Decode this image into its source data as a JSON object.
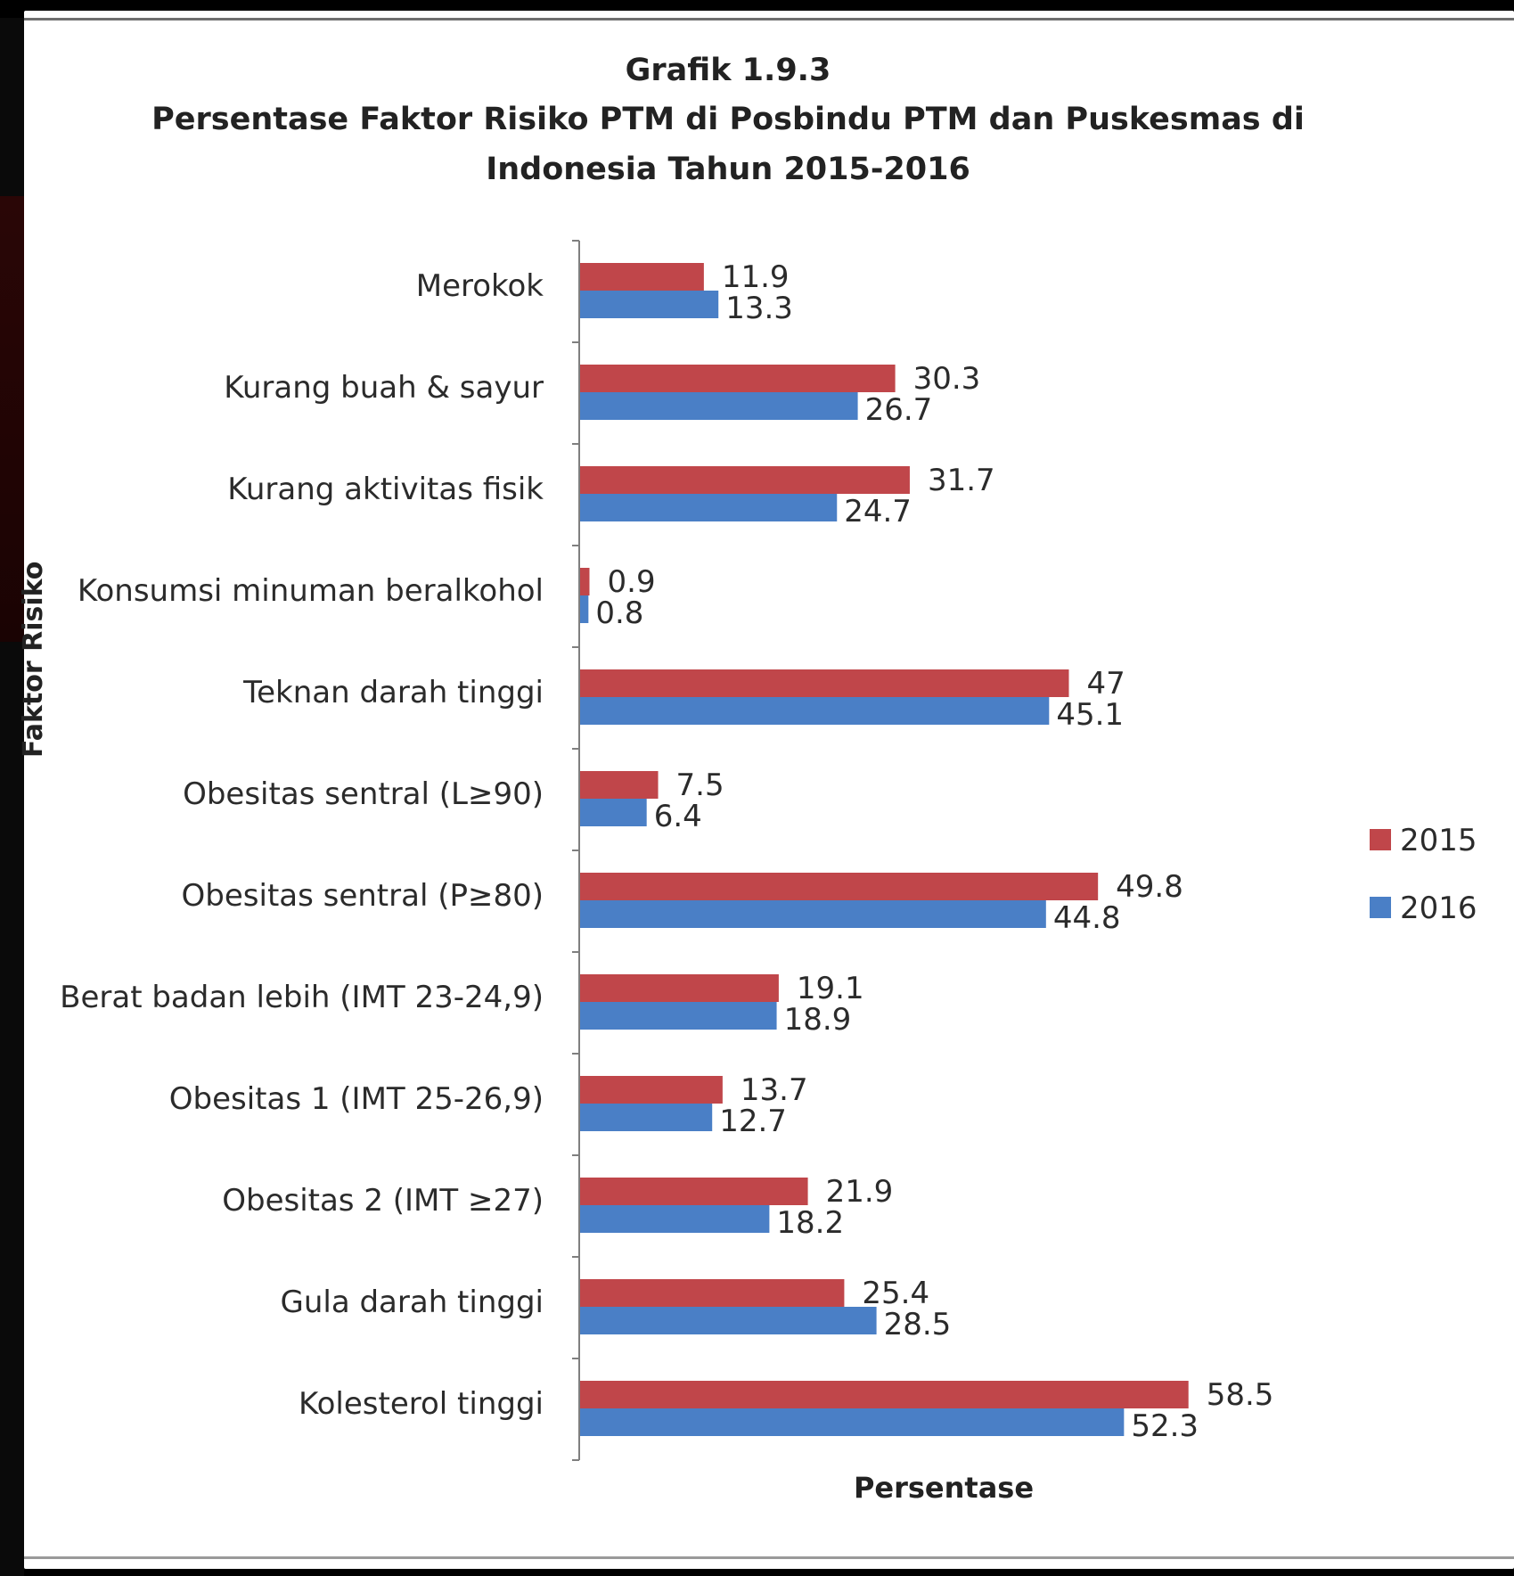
{
  "chart_data": {
    "type": "bar",
    "orientation": "horizontal",
    "title": "Grafik 1.9.3",
    "subtitle": "Persentase Faktor Risiko PTM di Posbindu PTM dan Puskesmas di Indonesia Tahun 2015-2016",
    "subtitle_lines": [
      "Persentase Faktor Risiko PTM di Posbindu PTM dan Puskesmas di",
      "Indonesia Tahun 2015-2016"
    ],
    "xlabel": "Persentase",
    "ylabel": "Faktor Risiko",
    "xlim": [
      0,
      70
    ],
    "grid": false,
    "legend_position": "right",
    "categories": [
      "Merokok",
      "Kurang buah & sayur",
      "Kurang aktivitas fisik",
      "Konsumsi minuman beralkohol",
      "Teknan darah tinggi",
      "Obesitas sentral (L≥90)",
      "Obesitas sentral (P≥80)",
      "Berat badan lebih (IMT 23-24,9)",
      "Obesitas 1 (IMT 25-26,9)",
      "Obesitas 2 (IMT ≥27)",
      "Gula darah tinggi",
      "Kolesterol tinggi"
    ],
    "series": [
      {
        "name": "2015",
        "color": "#c0464a",
        "values": [
          11.9,
          30.3,
          31.7,
          0.9,
          47,
          7.5,
          49.8,
          19.1,
          13.7,
          21.9,
          25.4,
          58.5
        ],
        "labels": [
          "11.9",
          "30.3",
          "31.7",
          "0.9",
          "47",
          "7.5",
          "49.8",
          "19.1",
          "13.7",
          "21.9",
          "25.4",
          "58.5"
        ]
      },
      {
        "name": "2016",
        "color": "#4a7fc6",
        "values": [
          13.3,
          26.7,
          24.7,
          0.8,
          45.1,
          6.4,
          44.8,
          18.9,
          12.7,
          18.2,
          28.5,
          52.3
        ],
        "labels": [
          "13.3",
          "26.7",
          "24.7",
          "0.8",
          "45.1",
          "6.4",
          "44.8",
          "18.9",
          "12.7",
          "18.2",
          "28.5",
          "52.3"
        ]
      }
    ]
  }
}
